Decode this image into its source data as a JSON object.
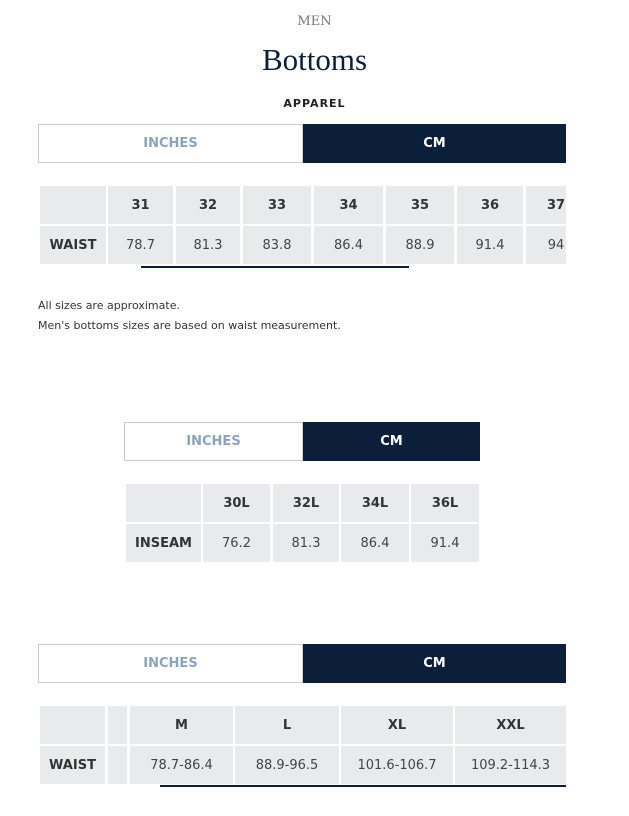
{
  "header": {
    "section": "MEN",
    "title": "Bottoms",
    "subtitle": "APPAREL"
  },
  "tables": [
    {
      "toggle": {
        "inactive": "INCHES",
        "active": "CM"
      },
      "columns": [
        "31",
        "32",
        "33",
        "34",
        "35",
        "36",
        "37"
      ],
      "rows": [
        {
          "label": "WAIST",
          "values": [
            "78.7",
            "81.3",
            "83.8",
            "86.4",
            "88.9",
            "91.4",
            "94"
          ]
        }
      ]
    },
    {
      "toggle": {
        "inactive": "INCHES",
        "active": "CM"
      },
      "columns": [
        "30L",
        "32L",
        "34L",
        "36L"
      ],
      "rows": [
        {
          "label": "INSEAM",
          "values": [
            "76.2",
            "81.3",
            "86.4",
            "91.4"
          ]
        }
      ]
    },
    {
      "toggle": {
        "inactive": "INCHES",
        "active": "CM"
      },
      "columns": [
        "M",
        "L",
        "XL",
        "XXL"
      ],
      "rows": [
        {
          "label": "WAIST",
          "values": [
            "78.7-86.4",
            "88.9-96.5",
            "101.6-106.7",
            "109.2-114.3"
          ]
        }
      ]
    }
  ],
  "notes": [
    "All sizes are approximate.",
    "Men's bottoms sizes are based on waist measurement."
  ]
}
